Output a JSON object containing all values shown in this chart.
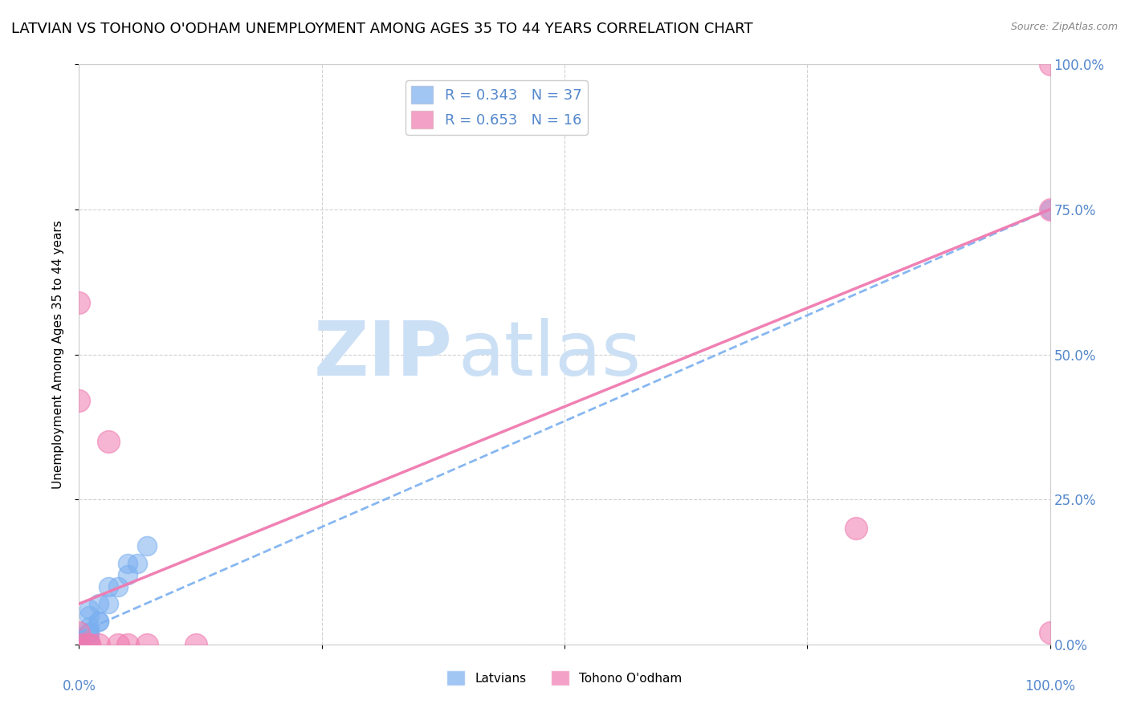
{
  "title": "LATVIAN VS TOHONO O'ODHAM UNEMPLOYMENT AMONG AGES 35 TO 44 YEARS CORRELATION CHART",
  "source": "Source: ZipAtlas.com",
  "ylabel": "Unemployment Among Ages 35 to 44 years",
  "xlim": [
    0,
    1.0
  ],
  "ylim": [
    0,
    1.0
  ],
  "xticks": [
    0.0,
    0.25,
    0.5,
    0.75,
    1.0
  ],
  "xticklabels": [
    "0.0%",
    "",
    "",
    "",
    "100.0%"
  ],
  "yticks": [
    0.0,
    0.25,
    0.5,
    0.75,
    1.0
  ],
  "yticklabels_right": [
    "0.0%",
    "25.0%",
    "50.0%",
    "75.0%",
    "100.0%"
  ],
  "latvian_color": "#7aaff0",
  "tohono_color": "#f07ab0",
  "legend_R1": "R = 0.343",
  "legend_N1": "N = 37",
  "legend_R2": "R = 0.653",
  "legend_N2": "N = 16",
  "watermark_zip": "ZIP",
  "watermark_atlas": "atlas",
  "latvian_x": [
    0.0,
    0.0,
    0.0,
    0.0,
    0.0,
    0.0,
    0.0,
    0.0,
    0.0,
    0.0,
    0.0,
    0.0,
    0.0,
    0.0,
    0.0,
    0.0,
    0.0,
    0.0,
    0.0,
    0.0,
    0.01,
    0.01,
    0.01,
    0.01,
    0.01,
    0.01,
    0.02,
    0.02,
    0.02,
    0.03,
    0.03,
    0.04,
    0.05,
    0.05,
    0.06,
    0.07,
    1.0
  ],
  "latvian_y": [
    0.0,
    0.0,
    0.0,
    0.0,
    0.0,
    0.0,
    0.0,
    0.0,
    0.0,
    0.0,
    0.0,
    0.0,
    0.0,
    0.0,
    0.0,
    0.0,
    0.01,
    0.01,
    0.01,
    0.01,
    0.01,
    0.02,
    0.02,
    0.03,
    0.05,
    0.06,
    0.04,
    0.04,
    0.07,
    0.07,
    0.1,
    0.1,
    0.12,
    0.14,
    0.14,
    0.17,
    0.75
  ],
  "tohono_x": [
    0.0,
    0.0,
    0.0,
    0.0,
    0.01,
    0.01,
    0.02,
    0.03,
    0.04,
    0.05,
    0.07,
    0.12,
    0.8,
    1.0,
    1.0,
    1.0
  ],
  "tohono_y": [
    0.59,
    0.42,
    0.02,
    0.0,
    0.0,
    0.0,
    0.0,
    0.35,
    0.0,
    0.0,
    0.0,
    0.0,
    0.2,
    0.75,
    1.0,
    0.02
  ],
  "lat_line_x0": 0.0,
  "lat_line_y0": 0.02,
  "lat_line_x1": 1.0,
  "lat_line_y1": 0.75,
  "toh_line_x0": 0.0,
  "toh_line_y0": 0.07,
  "toh_line_x1": 1.0,
  "toh_line_y1": 0.75,
  "bg_color": "#ffffff",
  "grid_color": "#cccccc",
  "tick_color": "#5588cc",
  "title_fontsize": 13,
  "label_fontsize": 11,
  "tick_fontsize": 12,
  "watermark_color": "#cce0f5"
}
